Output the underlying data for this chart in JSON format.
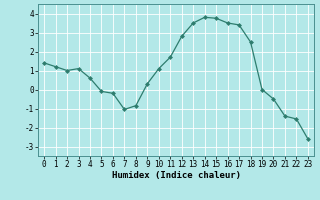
{
  "x": [
    0,
    1,
    2,
    3,
    4,
    5,
    6,
    7,
    8,
    9,
    10,
    11,
    12,
    13,
    14,
    15,
    16,
    17,
    18,
    19,
    20,
    21,
    22,
    23
  ],
  "y": [
    1.4,
    1.2,
    1.0,
    1.1,
    0.6,
    -0.1,
    -0.2,
    -1.05,
    -0.85,
    0.3,
    1.1,
    1.7,
    2.8,
    3.5,
    3.8,
    3.75,
    3.5,
    3.4,
    2.5,
    0.0,
    -0.5,
    -1.4,
    -1.55,
    -2.6
  ],
  "xlabel": "Humidex (Indice chaleur)",
  "xlim": [
    -0.5,
    23.5
  ],
  "ylim": [
    -3.5,
    4.5
  ],
  "yticks": [
    -3,
    -2,
    -1,
    0,
    1,
    2,
    3,
    4
  ],
  "xticks": [
    0,
    1,
    2,
    3,
    4,
    5,
    6,
    7,
    8,
    9,
    10,
    11,
    12,
    13,
    14,
    15,
    16,
    17,
    18,
    19,
    20,
    21,
    22,
    23
  ],
  "line_color": "#2e7d6e",
  "marker": "D",
  "marker_size": 2.0,
  "bg_color": "#b3e8e8",
  "grid_color": "#ffffff",
  "label_fontsize": 6.5,
  "tick_fontsize": 5.5
}
